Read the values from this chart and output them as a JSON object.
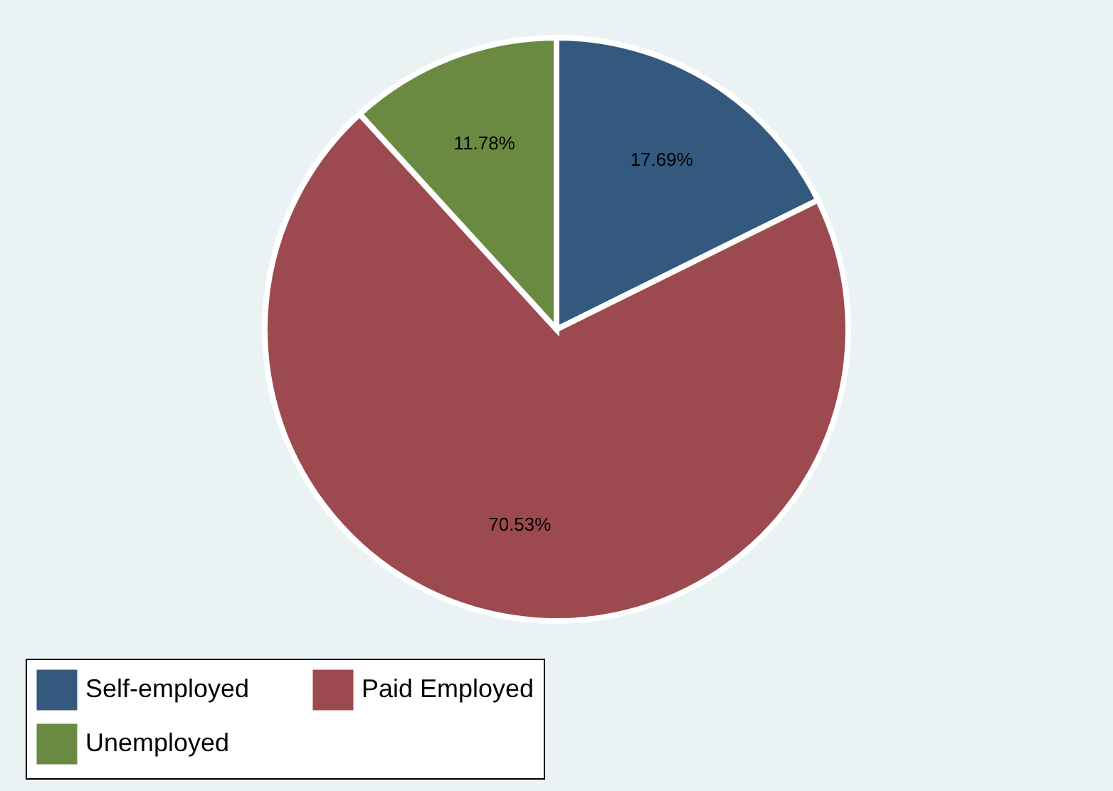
{
  "chart_data": {
    "type": "pie",
    "categories": [
      "Self-employed",
      "Paid Employed",
      "Unemployed"
    ],
    "values": [
      17.69,
      70.53,
      11.78
    ],
    "colors": [
      "#34597f",
      "#9c4a4f",
      "#6a8a42"
    ],
    "value_labels": [
      "17.69%",
      "70.53%",
      "11.78%"
    ],
    "legend": "bottom"
  }
}
